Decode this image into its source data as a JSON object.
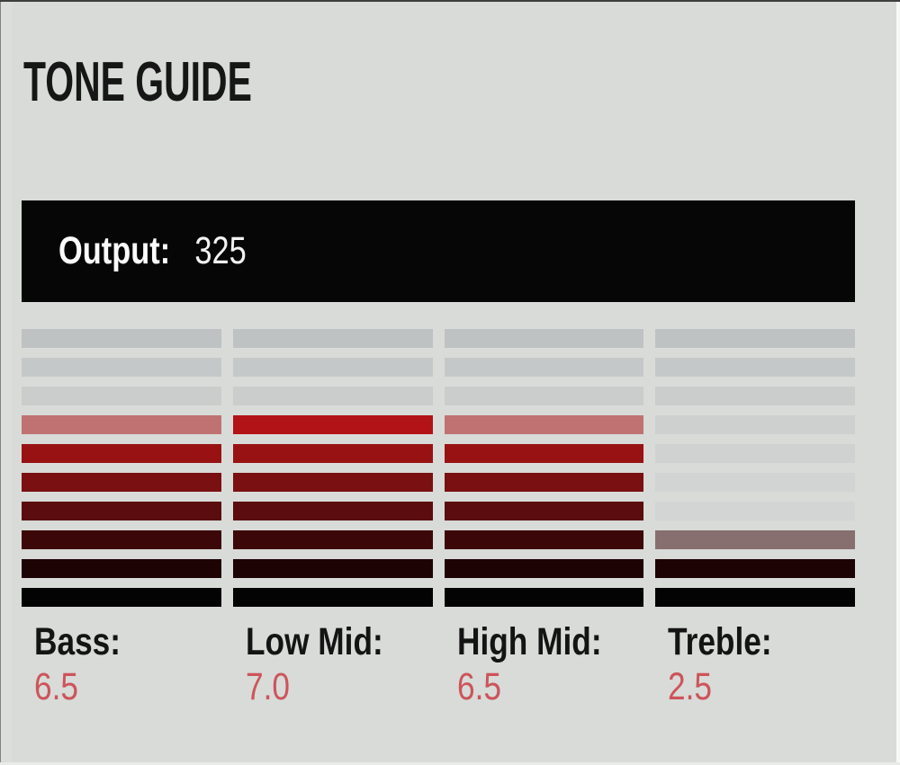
{
  "title": "TONE GUIDE",
  "output_bar": {
    "label": "Output:",
    "value": "325"
  },
  "colors": {
    "background": "#d8dbd8",
    "output_bar_bg": "#060606",
    "title_color": "#161616",
    "band_label_color": "#141414",
    "band_value_color": "#cd545b",
    "lit_ramp_rows_4_to_10": [
      "#b21316",
      "#981214",
      "#7a1012",
      "#5b0c0e",
      "#3c0708",
      "#1d0304",
      "#030303"
    ],
    "unlit_ramp_rows_1_to_10": [
      "#bfc2c2",
      "#c5c8c8",
      "#cbcdcd",
      "#ced0d0",
      "#d0d2d2",
      "#d2d4d4",
      "#d3d5d5",
      "#d4d6d6",
      "#d5d7d7",
      "#d6d8d8"
    ]
  },
  "chart_data": {
    "type": "bar",
    "title": "TONE GUIDE",
    "subtype": "segmented-led-meter",
    "segments_per_column": 10,
    "scale": [
      0,
      10
    ],
    "legend_position": "below-columns",
    "bands": [
      {
        "label": "Bass:",
        "value": 6.5,
        "display": "6.5"
      },
      {
        "label": "Low Mid:",
        "value": 7.0,
        "display": "7.0"
      },
      {
        "label": "High Mid:",
        "value": 6.5,
        "display": "6.5"
      },
      {
        "label": "Treble:",
        "value": 2.5,
        "display": "2.5"
      }
    ],
    "output": {
      "label": "Output:",
      "value": 325
    }
  }
}
